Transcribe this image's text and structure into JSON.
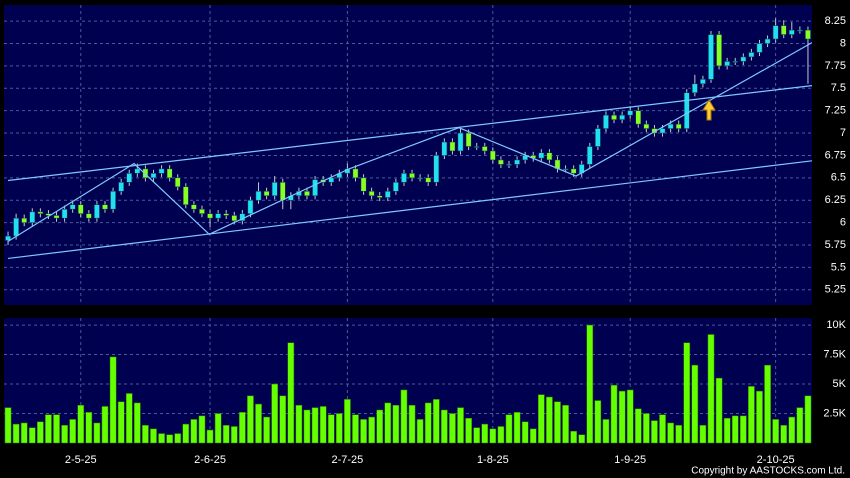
{
  "chart_data": {
    "type": "candlestick",
    "categories": [
      null,
      null,
      null,
      null,
      null,
      null,
      null,
      null,
      null,
      "2-5-25",
      null,
      null,
      null,
      null,
      null,
      null,
      null,
      null,
      null,
      null,
      null,
      null,
      null,
      null,
      null,
      "2-6-25",
      null,
      null,
      null,
      null,
      null,
      null,
      null,
      null,
      null,
      null,
      null,
      null,
      null,
      null,
      null,
      null,
      "2-7-25",
      null,
      null,
      null,
      null,
      null,
      null,
      null,
      null,
      null,
      null,
      null,
      null,
      null,
      null,
      null,
      null,
      null,
      "1-8-25",
      null,
      null,
      null,
      null,
      null,
      null,
      null,
      null,
      null,
      null,
      null,
      null,
      null,
      null,
      null,
      null,
      "1-9-25",
      null,
      null,
      null,
      null,
      null,
      null,
      null,
      null,
      null,
      null,
      null,
      null,
      null,
      null,
      null,
      null,
      null,
      "2-10-25",
      null,
      null,
      null,
      null
    ],
    "candles": [
      [
        5.8,
        5.9,
        5.75,
        5.85
      ],
      [
        5.85,
        6.1,
        5.81,
        6.05
      ],
      [
        6.05,
        6.09,
        5.96,
        6.0
      ],
      [
        6.0,
        6.16,
        5.96,
        6.12
      ],
      [
        6.12,
        6.16,
        6.06,
        6.1
      ],
      [
        6.1,
        6.14,
        6.04,
        6.08
      ],
      [
        6.08,
        6.12,
        6.01,
        6.05
      ],
      [
        6.05,
        6.19,
        6.01,
        6.15
      ],
      [
        6.15,
        6.24,
        6.11,
        6.2
      ],
      [
        6.2,
        6.24,
        6.06,
        6.1
      ],
      [
        6.1,
        6.14,
        6.01,
        6.05
      ],
      [
        6.05,
        6.24,
        6.01,
        6.2
      ],
      [
        6.2,
        6.24,
        6.11,
        6.15
      ],
      [
        6.15,
        6.39,
        6.11,
        6.35
      ],
      [
        6.35,
        6.49,
        6.31,
        6.45
      ],
      [
        6.45,
        6.59,
        6.41,
        6.55
      ],
      [
        6.55,
        6.66,
        6.51,
        6.6
      ],
      [
        6.6,
        6.64,
        6.46,
        6.5
      ],
      [
        6.5,
        6.59,
        6.46,
        6.55
      ],
      [
        6.55,
        6.64,
        6.51,
        6.6
      ],
      [
        6.6,
        6.64,
        6.46,
        6.5
      ],
      [
        6.5,
        6.54,
        6.36,
        6.4
      ],
      [
        6.4,
        6.44,
        6.16,
        6.2
      ],
      [
        6.2,
        6.24,
        6.11,
        6.15
      ],
      [
        6.15,
        6.19,
        6.06,
        6.1
      ],
      [
        6.1,
        6.14,
        5.95,
        6.05
      ],
      [
        6.05,
        6.14,
        6.01,
        6.1
      ],
      [
        6.1,
        6.14,
        6.04,
        6.08
      ],
      [
        6.08,
        6.12,
        5.98,
        6.02
      ],
      [
        6.02,
        6.14,
        5.98,
        6.1
      ],
      [
        6.1,
        6.29,
        6.06,
        6.25
      ],
      [
        6.25,
        6.45,
        6.21,
        6.35
      ],
      [
        6.35,
        6.39,
        6.26,
        6.3
      ],
      [
        6.3,
        6.52,
        6.26,
        6.45
      ],
      [
        6.45,
        6.49,
        6.15,
        6.25
      ],
      [
        6.25,
        6.34,
        6.15,
        6.3
      ],
      [
        6.3,
        6.39,
        6.26,
        6.35
      ],
      [
        6.35,
        6.39,
        6.26,
        6.3
      ],
      [
        6.3,
        6.52,
        6.26,
        6.48
      ],
      [
        6.48,
        6.52,
        6.41,
        6.45
      ],
      [
        6.45,
        6.54,
        6.41,
        6.5
      ],
      [
        6.5,
        6.59,
        6.46,
        6.55
      ],
      [
        6.55,
        6.66,
        6.51,
        6.6
      ],
      [
        6.6,
        6.64,
        6.46,
        6.5
      ],
      [
        6.5,
        6.54,
        6.31,
        6.35
      ],
      [
        6.35,
        6.39,
        6.26,
        6.3
      ],
      [
        6.3,
        6.34,
        6.24,
        6.28
      ],
      [
        6.28,
        6.39,
        6.24,
        6.35
      ],
      [
        6.35,
        6.49,
        6.31,
        6.45
      ],
      [
        6.45,
        6.59,
        6.41,
        6.55
      ],
      [
        6.55,
        6.59,
        6.46,
        6.5
      ],
      [
        6.5,
        6.54,
        6.46,
        6.5
      ],
      [
        6.5,
        6.54,
        6.41,
        6.45
      ],
      [
        6.45,
        6.79,
        6.41,
        6.75
      ],
      [
        6.75,
        6.94,
        6.71,
        6.9
      ],
      [
        6.9,
        6.94,
        6.76,
        6.8
      ],
      [
        6.8,
        7.06,
        6.76,
        7.0
      ],
      [
        7.0,
        7.04,
        6.81,
        6.85
      ],
      [
        6.85,
        6.89,
        6.81,
        6.85
      ],
      [
        6.85,
        6.89,
        6.76,
        6.8
      ],
      [
        6.8,
        6.84,
        6.66,
        6.7
      ],
      [
        6.7,
        6.74,
        6.61,
        6.65
      ],
      [
        6.65,
        6.69,
        6.61,
        6.65
      ],
      [
        6.65,
        6.74,
        6.61,
        6.7
      ],
      [
        6.7,
        6.79,
        6.66,
        6.75
      ],
      [
        6.75,
        6.79,
        6.68,
        6.72
      ],
      [
        6.72,
        6.82,
        6.68,
        6.78
      ],
      [
        6.78,
        6.82,
        6.66,
        6.7
      ],
      [
        6.7,
        6.74,
        6.56,
        6.6
      ],
      [
        6.6,
        6.64,
        6.56,
        6.6
      ],
      [
        6.6,
        6.64,
        6.51,
        6.55
      ],
      [
        6.55,
        6.69,
        6.51,
        6.65
      ],
      [
        6.65,
        6.89,
        6.61,
        6.85
      ],
      [
        6.85,
        7.09,
        6.81,
        7.05
      ],
      [
        7.05,
        7.24,
        7.01,
        7.2
      ],
      [
        7.2,
        7.24,
        7.11,
        7.15
      ],
      [
        7.15,
        7.24,
        7.11,
        7.2
      ],
      [
        7.2,
        7.3,
        7.16,
        7.25
      ],
      [
        7.25,
        7.29,
        7.06,
        7.1
      ],
      [
        7.1,
        7.14,
        7.01,
        7.05
      ],
      [
        7.05,
        7.09,
        6.96,
        7.0
      ],
      [
        7.0,
        7.09,
        6.96,
        7.05
      ],
      [
        7.05,
        7.14,
        7.01,
        7.1
      ],
      [
        7.1,
        7.14,
        7.01,
        7.05
      ],
      [
        7.05,
        7.49,
        7.01,
        7.45
      ],
      [
        7.45,
        7.65,
        7.41,
        7.55
      ],
      [
        7.55,
        7.64,
        7.51,
        7.6
      ],
      [
        7.6,
        8.14,
        7.56,
        8.1
      ],
      [
        8.1,
        8.14,
        7.71,
        7.75
      ],
      [
        7.75,
        7.84,
        7.71,
        7.8
      ],
      [
        7.8,
        7.84,
        7.76,
        7.8
      ],
      [
        7.8,
        7.89,
        7.76,
        7.85
      ],
      [
        7.85,
        7.94,
        7.81,
        7.9
      ],
      [
        7.9,
        8.04,
        7.86,
        8.0
      ],
      [
        8.0,
        8.09,
        7.96,
        8.05
      ],
      [
        8.05,
        8.28,
        8.01,
        8.2
      ],
      [
        8.2,
        8.26,
        8.06,
        8.1
      ],
      [
        8.1,
        8.24,
        8.06,
        8.15
      ],
      [
        8.15,
        8.19,
        8.11,
        8.15
      ],
      [
        8.15,
        8.19,
        7.55,
        8.05
      ]
    ],
    "volume": [
      3000,
      1600,
      1700,
      1300,
      1800,
      2400,
      2400,
      1500,
      2000,
      3200,
      2600,
      1700,
      3100,
      7300,
      3500,
      4200,
      3400,
      1500,
      1200,
      800,
      700,
      800,
      1600,
      2000,
      2300,
      1100,
      2500,
      1500,
      1400,
      2600,
      4000,
      3300,
      2200,
      5000,
      4000,
      8500,
      3200,
      2800,
      3000,
      3100,
      2400,
      2500,
      3700,
      2400,
      2000,
      2200,
      2800,
      3400,
      3200,
      4500,
      3200,
      2000,
      3400,
      3700,
      2800,
      2500,
      3000,
      2100,
      1300,
      1600,
      1200,
      1400,
      2400,
      2600,
      1800,
      1200,
      4100,
      3900,
      3500,
      3200,
      1000,
      700,
      10000,
      3600,
      2000,
      4900,
      4400,
      4500,
      2900,
      2500,
      1900,
      2400,
      1700,
      1500,
      8500,
      6600,
      1500,
      9200,
      5500,
      2100,
      2300,
      2300,
      4800,
      4400,
      6600,
      2000,
      1500,
      2200,
      3000,
      4000
    ],
    "up_color": "#22e0f0",
    "down_color": "#88ff22",
    "volume_color": "#66ff00",
    "ylim": [
      5.08,
      8.43
    ],
    "yticks": [
      5.25,
      5.5,
      5.75,
      6,
      6.25,
      6.5,
      6.75,
      7,
      7.25,
      7.5,
      7.75,
      8,
      8.25
    ],
    "vol_ylim": [
      0,
      10600
    ],
    "vol_yticks": [
      {
        "value": 2500,
        "label": "2.5K"
      },
      {
        "value": 5000,
        "label": "5K"
      },
      {
        "value": 7500,
        "label": "7.5K"
      },
      {
        "value": 10000,
        "label": "10K"
      }
    ],
    "trend_lines": [
      [
        [
          0,
          6.47
        ],
        [
          99.5,
          7.53
        ]
      ],
      [
        [
          0,
          5.6
        ],
        [
          99.5,
          6.69
        ]
      ],
      [
        [
          0,
          5.79
        ],
        [
          15.6,
          6.66
        ],
        [
          24.9,
          5.87
        ],
        [
          42.2,
          6.6
        ],
        [
          55.8,
          7.06
        ],
        [
          70.3,
          6.52
        ],
        [
          99.5,
          8.01
        ]
      ]
    ],
    "trend_color": "#7fc8ff",
    "grid": true,
    "copyright": "Copyright by AASTOCKS.com Ltd."
  }
}
